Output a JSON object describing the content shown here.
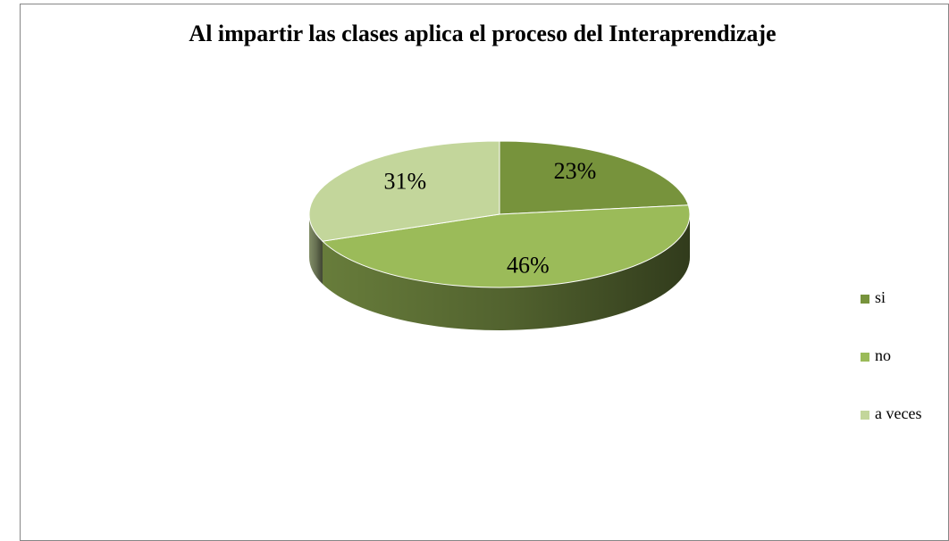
{
  "chart_data": {
    "type": "pie3d",
    "title": "Al impartir las clases aplica el proceso del Interaprendizaje",
    "categories": [
      "si",
      "no",
      "a veces"
    ],
    "values": [
      23,
      46,
      31
    ],
    "value_labels": [
      "23%",
      "46%",
      "31%"
    ],
    "colors": [
      "#77933c",
      "#9bbb59",
      "#c3d69b"
    ],
    "legend": "right"
  }
}
